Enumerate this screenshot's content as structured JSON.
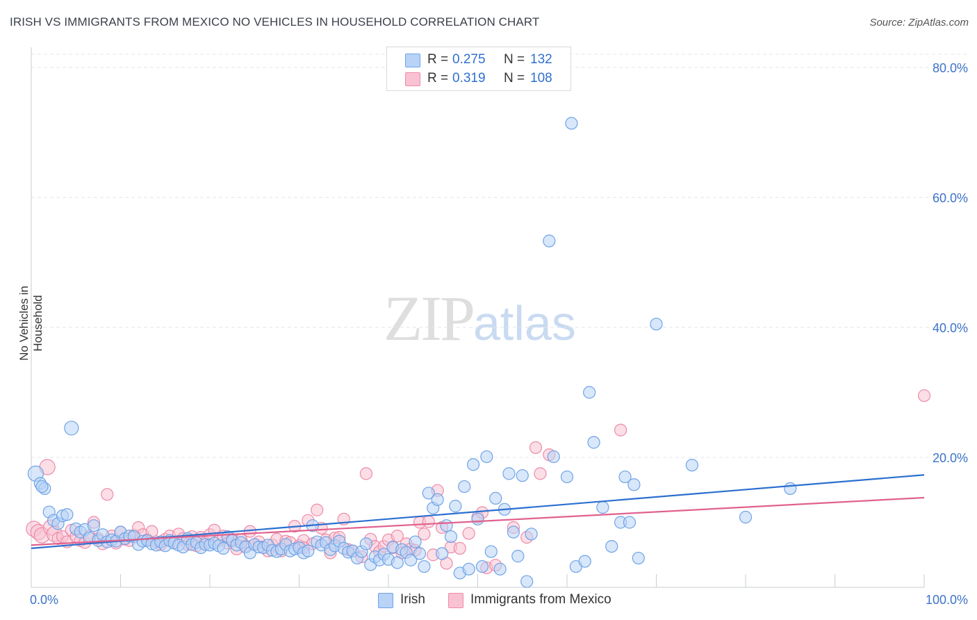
{
  "title": "IRISH VS IMMIGRANTS FROM MEXICO NO VEHICLES IN HOUSEHOLD CORRELATION CHART",
  "source": "Source: ZipAtlas.com",
  "watermark": {
    "zip": "ZIP",
    "atlas": "atlas"
  },
  "legend": {
    "rows": [
      {
        "r_label": "R =",
        "r_value": "0.275",
        "n_label": "N =",
        "n_value": "132",
        "color": "#a9c8f2"
      },
      {
        "r_label": "R =",
        "r_value": "0.319",
        "n_label": "N =",
        "n_value": "108",
        "color": "#f7b6c8"
      }
    ]
  },
  "chart_data": {
    "type": "scatter",
    "title": "IRISH VS IMMIGRANTS FROM MEXICO NO VEHICLES IN HOUSEHOLD CORRELATION CHART",
    "xlabel": "",
    "ylabel": "No Vehicles in Household",
    "xlim": [
      0,
      100
    ],
    "ylim": [
      0,
      80
    ],
    "x_tick_labels": [
      "0.0%",
      "100.0%"
    ],
    "y_tick_labels": [
      "20.0%",
      "40.0%",
      "60.0%",
      "80.0%"
    ],
    "y_ticks": [
      20,
      40,
      60,
      80
    ],
    "grid": true,
    "legend_position": "top-center",
    "series": [
      {
        "name": "Irish",
        "color": "#6fa3e6",
        "fill": "#b8d3f5",
        "trend": {
          "x": [
            0,
            100
          ],
          "y": [
            6.0,
            17.3
          ],
          "color": "#2b6fcf"
        },
        "points": [
          [
            0.5,
            17.5
          ],
          [
            1,
            16
          ],
          [
            1.5,
            15.2
          ],
          [
            2,
            11.6
          ],
          [
            2.5,
            10.3
          ],
          [
            3,
            9.8
          ],
          [
            3.5,
            11
          ],
          [
            4,
            11.2
          ],
          [
            4.5,
            24.5
          ],
          [
            5,
            9
          ],
          [
            5.5,
            8.5
          ],
          [
            6,
            8.9
          ],
          [
            6.5,
            7.6
          ],
          [
            7,
            9.5
          ],
          [
            7.5,
            7.2
          ],
          [
            8,
            8.1
          ],
          [
            8.5,
            7
          ],
          [
            9,
            7.3
          ],
          [
            9.5,
            7.1
          ],
          [
            10,
            8.5
          ],
          [
            10.5,
            7.5
          ],
          [
            11,
            7.9
          ],
          [
            11.5,
            7.8
          ],
          [
            12,
            6.6
          ],
          [
            12.5,
            7.1
          ],
          [
            13,
            7.2
          ],
          [
            13.5,
            6.7
          ],
          [
            14,
            6.5
          ],
          [
            14.5,
            7
          ],
          [
            15,
            6.4
          ],
          [
            15.5,
            7.2
          ],
          [
            16,
            6.8
          ],
          [
            16.5,
            6.5
          ],
          [
            17,
            6.2
          ],
          [
            17.5,
            7.5
          ],
          [
            18,
            6.6
          ],
          [
            18.5,
            6.9
          ],
          [
            19,
            6.1
          ],
          [
            19.5,
            6.6
          ],
          [
            20,
            6.5
          ],
          [
            20.5,
            6.8
          ],
          [
            21,
            6.4
          ],
          [
            21.5,
            6
          ],
          [
            22,
            7.8
          ],
          [
            22.5,
            7.2
          ],
          [
            23,
            6.5
          ],
          [
            23.5,
            6.9
          ],
          [
            24,
            6.2
          ],
          [
            24.5,
            5.3
          ],
          [
            25,
            6.6
          ],
          [
            25.5,
            6.2
          ],
          [
            26,
            6.1
          ],
          [
            26.5,
            6.5
          ],
          [
            27,
            5.7
          ],
          [
            27.5,
            5.5
          ],
          [
            28,
            5.9
          ],
          [
            28.5,
            6.6
          ],
          [
            29,
            5.6
          ],
          [
            29.5,
            5.9
          ],
          [
            30,
            6.1
          ],
          [
            30.5,
            5.3
          ],
          [
            31,
            5.6
          ],
          [
            31.5,
            9.5
          ],
          [
            32,
            7
          ],
          [
            32.5,
            6.5
          ],
          [
            33,
            6.9
          ],
          [
            33.5,
            5.8
          ],
          [
            34,
            6.4
          ],
          [
            34.5,
            7.1
          ],
          [
            35,
            6
          ],
          [
            35.5,
            5.4
          ],
          [
            36,
            5.6
          ],
          [
            36.5,
            4.5
          ],
          [
            37,
            5.5
          ],
          [
            37.5,
            6.7
          ],
          [
            38,
            3.5
          ],
          [
            38.5,
            4.7
          ],
          [
            39,
            4.2
          ],
          [
            39.5,
            5.1
          ],
          [
            40,
            4.3
          ],
          [
            40.5,
            6.2
          ],
          [
            41,
            3.8
          ],
          [
            41.5,
            5.8
          ],
          [
            42,
            5.4
          ],
          [
            42.5,
            4.2
          ],
          [
            43,
            7
          ],
          [
            43.5,
            5.2
          ],
          [
            44,
            3.2
          ],
          [
            44.5,
            14.5
          ],
          [
            45,
            12.2
          ],
          [
            45.5,
            13.5
          ],
          [
            46,
            5.2
          ],
          [
            46.5,
            9.5
          ],
          [
            47,
            7.8
          ],
          [
            47.5,
            12.5
          ],
          [
            48,
            2.2
          ],
          [
            48.5,
            15.5
          ],
          [
            49,
            2.8
          ],
          [
            49.5,
            18.9
          ],
          [
            50,
            10.5
          ],
          [
            50.5,
            3.2
          ],
          [
            51,
            20.1
          ],
          [
            51.5,
            5.5
          ],
          [
            52,
            13.7
          ],
          [
            52.5,
            2.8
          ],
          [
            53,
            12
          ],
          [
            53.5,
            17.5
          ],
          [
            54,
            8.5
          ],
          [
            54.5,
            4.8
          ],
          [
            55,
            17.2
          ],
          [
            55.5,
            0.9
          ],
          [
            56,
            8.2
          ],
          [
            58,
            53.3
          ],
          [
            58.5,
            20.1
          ],
          [
            60,
            17
          ],
          [
            60.5,
            71.4
          ],
          [
            61,
            3.2
          ],
          [
            62,
            4
          ],
          [
            62.5,
            30
          ],
          [
            63,
            22.3
          ],
          [
            64,
            12.3
          ],
          [
            65,
            6.3
          ],
          [
            66,
            10
          ],
          [
            66.5,
            17
          ],
          [
            67,
            10
          ],
          [
            67.5,
            15.8
          ],
          [
            68,
            4.5
          ],
          [
            70,
            40.5
          ],
          [
            74,
            18.8
          ],
          [
            80,
            10.8
          ],
          [
            85,
            15.2
          ],
          [
            1.2,
            15.5
          ]
        ]
      },
      {
        "name": "Immigrants from Mexico",
        "color": "#ee8aa8",
        "fill": "#f8c2d2",
        "trend": {
          "x": [
            0,
            100
          ],
          "y": [
            6.5,
            13.8
          ],
          "color": "#e0618e"
        },
        "points": [
          [
            0.3,
            9
          ],
          [
            0.8,
            8.5
          ],
          [
            1.2,
            8
          ],
          [
            1.8,
            18.5
          ],
          [
            2.2,
            9.2
          ],
          [
            2.6,
            8.2
          ],
          [
            3,
            7.5
          ],
          [
            3.5,
            7.8
          ],
          [
            4,
            7
          ],
          [
            4.5,
            8.8
          ],
          [
            5,
            7.8
          ],
          [
            5.5,
            7.2
          ],
          [
            6,
            6.9
          ],
          [
            6.5,
            7.9
          ],
          [
            7,
            10
          ],
          [
            7.5,
            7.5
          ],
          [
            8,
            6.7
          ],
          [
            8.5,
            14.3
          ],
          [
            9,
            7.9
          ],
          [
            9.5,
            6.8
          ],
          [
            10,
            8.5
          ],
          [
            10.5,
            7.4
          ],
          [
            11,
            7.2
          ],
          [
            11.5,
            8
          ],
          [
            12,
            9.2
          ],
          [
            12.5,
            8.1
          ],
          [
            13,
            7.3
          ],
          [
            13.5,
            8.6
          ],
          [
            14,
            7
          ],
          [
            14.5,
            6.6
          ],
          [
            15,
            7.4
          ],
          [
            15.5,
            7.9
          ],
          [
            16,
            6.9
          ],
          [
            16.5,
            8.2
          ],
          [
            17,
            7.5
          ],
          [
            17.5,
            6.6
          ],
          [
            18,
            7.8
          ],
          [
            18.5,
            6.4
          ],
          [
            19,
            7.7
          ],
          [
            19.5,
            6.9
          ],
          [
            20,
            8.1
          ],
          [
            20.5,
            8.8
          ],
          [
            21,
            7.2
          ],
          [
            21.5,
            7.9
          ],
          [
            22,
            6.8
          ],
          [
            22.5,
            7.4
          ],
          [
            23,
            5.9
          ],
          [
            23.5,
            7.3
          ],
          [
            24,
            6.4
          ],
          [
            24.5,
            8.6
          ],
          [
            25,
            6.6
          ],
          [
            25.5,
            7
          ],
          [
            26,
            6.2
          ],
          [
            26.5,
            5.6
          ],
          [
            27,
            6.5
          ],
          [
            27.5,
            7.4
          ],
          [
            28,
            5.6
          ],
          [
            28.5,
            7.1
          ],
          [
            29,
            6.9
          ],
          [
            29.5,
            9.4
          ],
          [
            30,
            6.4
          ],
          [
            30.5,
            7.2
          ],
          [
            31,
            10.3
          ],
          [
            31.5,
            6.7
          ],
          [
            32,
            11.9
          ],
          [
            32.5,
            9.1
          ],
          [
            33,
            7.3
          ],
          [
            33.5,
            5.3
          ],
          [
            34,
            7.6
          ],
          [
            34.5,
            7.7
          ],
          [
            35,
            10.5
          ],
          [
            35.5,
            5.8
          ],
          [
            36,
            5.6
          ],
          [
            37,
            4.7
          ],
          [
            37.5,
            17.5
          ],
          [
            38,
            7.4
          ],
          [
            38.5,
            6.3
          ],
          [
            39,
            5.5
          ],
          [
            39.5,
            6.3
          ],
          [
            40,
            7.3
          ],
          [
            40.5,
            6.1
          ],
          [
            41,
            7.9
          ],
          [
            41.5,
            5.3
          ],
          [
            42,
            6.7
          ],
          [
            42.5,
            5.9
          ],
          [
            43,
            5.7
          ],
          [
            43.5,
            10
          ],
          [
            44,
            8.2
          ],
          [
            44.5,
            10.1
          ],
          [
            45,
            5
          ],
          [
            45.5,
            14.9
          ],
          [
            46,
            9.2
          ],
          [
            47,
            6.2
          ],
          [
            48,
            6
          ],
          [
            49,
            8.3
          ],
          [
            50,
            10.8
          ],
          [
            50.5,
            11.5
          ],
          [
            51,
            3
          ],
          [
            52,
            3.4
          ],
          [
            54,
            9.2
          ],
          [
            55.5,
            7.7
          ],
          [
            56.5,
            21.5
          ],
          [
            57,
            17.5
          ],
          [
            58,
            20.4
          ],
          [
            66,
            24.2
          ],
          [
            100,
            29.5
          ],
          [
            30.5,
            6.1
          ],
          [
            46.5,
            3.7
          ]
        ]
      }
    ]
  },
  "bottom_legend": [
    {
      "label": "Irish",
      "color": "#b8d3f5",
      "border": "#6fa3e6"
    },
    {
      "label": "Immigrants from Mexico",
      "color": "#f8c2d2",
      "border": "#ee8aa8"
    }
  ]
}
